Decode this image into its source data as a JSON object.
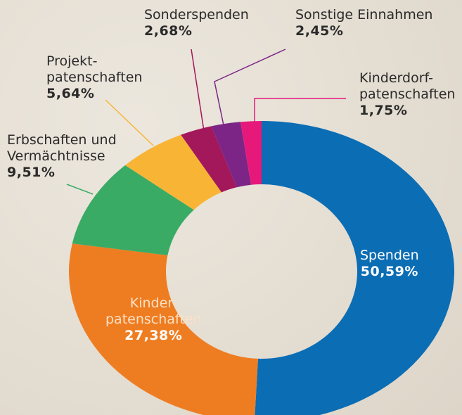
{
  "chart_data": {
    "type": "pie",
    "donut": true,
    "categories": [
      "Spenden",
      "Kinder-\npatenschaften",
      "Erbschaften und\nVermächtnisse",
      "Projekt-\npatenschaften",
      "Sonderspenden",
      "Sonstige Einnahmen",
      "Kinderdorf-\npatenschaften"
    ],
    "values": [
      50.59,
      27.38,
      9.51,
      5.64,
      2.68,
      2.45,
      1.75
    ],
    "value_labels": [
      "50,59%",
      "27,38%",
      "9,51%",
      "5,64%",
      "2,68%",
      "2,45%",
      "1,75%"
    ],
    "colors": [
      "#0b6db4",
      "#ee7d22",
      "#3aab64",
      "#f8b435",
      "#a3175b",
      "#7c2587",
      "#e6197b"
    ]
  }
}
